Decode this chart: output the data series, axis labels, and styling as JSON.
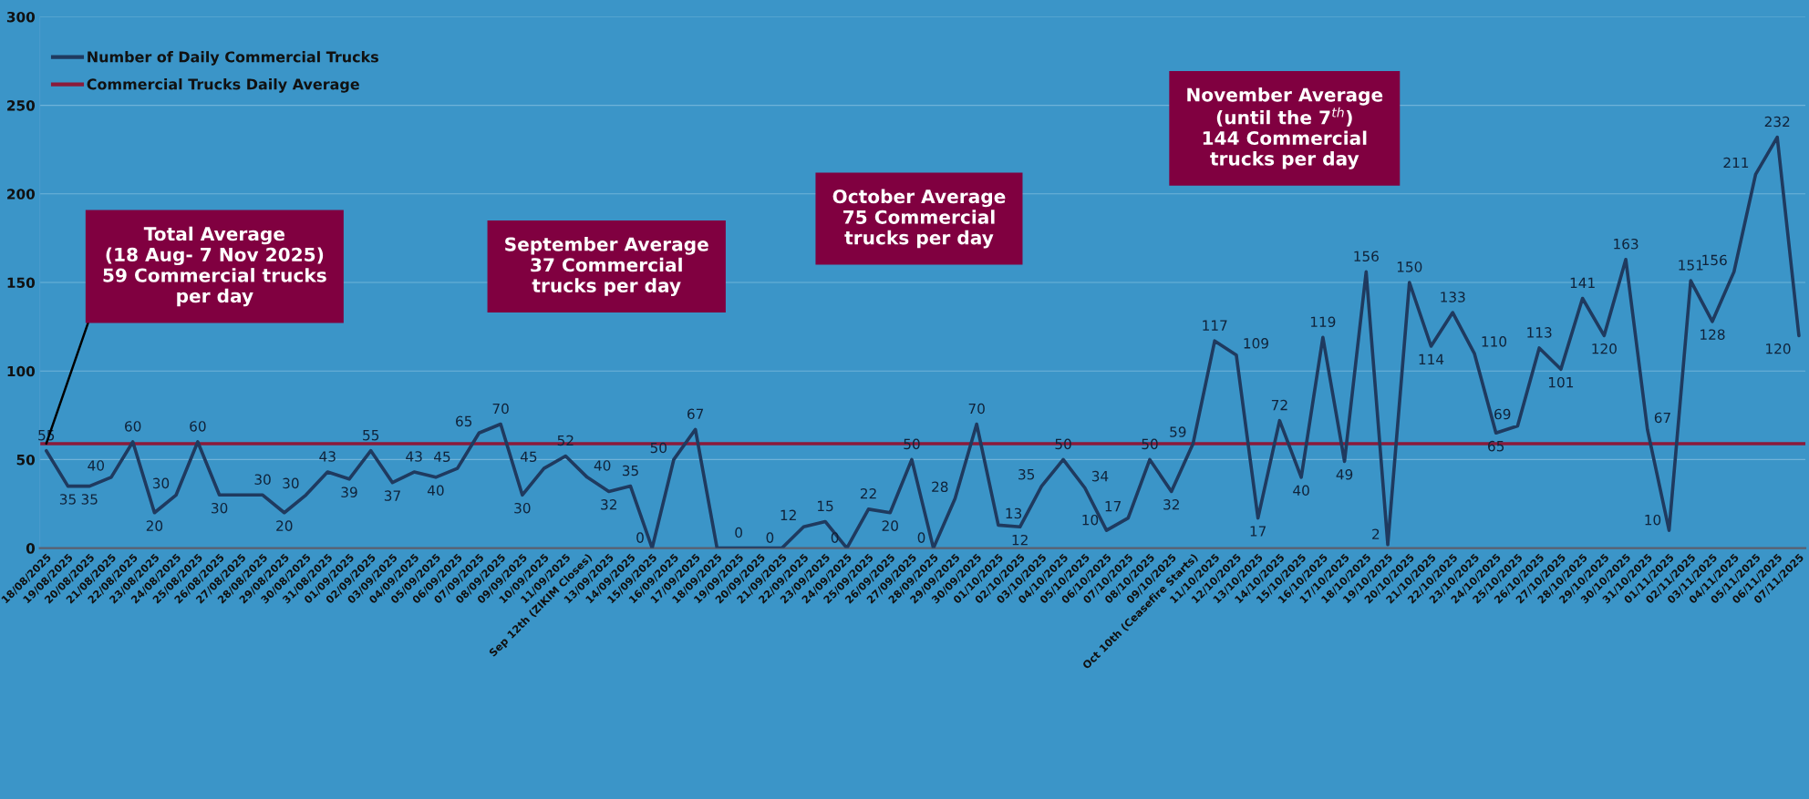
{
  "chart_data": {
    "type": "line",
    "categories": [
      "18/08/2025",
      "19/08/2025",
      "20/08/2025",
      "21/08/2025",
      "22/08/2025",
      "23/08/2025",
      "24/08/2025",
      "25/08/2025",
      "26/08/2025",
      "27/08/2025",
      "28/08/2025",
      "29/08/2025",
      "30/08/2025",
      "31/08/2025",
      "01/09/2025",
      "02/09/2025",
      "03/09/2025",
      "04/09/2025",
      "05/09/2025",
      "06/09/2025",
      "07/09/2025",
      "08/09/2025",
      "09/09/2025",
      "10/09/2025",
      "11/09/2025",
      "Sep 12th (ZIKIM Closes)",
      "13/09/2025",
      "14/09/2025",
      "15/09/2025",
      "16/09/2025",
      "17/09/2025",
      "18/09/2025",
      "19/09/2025",
      "20/09/2025",
      "21/09/2025",
      "22/09/2025",
      "23/09/2025",
      "24/09/2025",
      "25/09/2025",
      "26/09/2025",
      "27/09/2025",
      "28/09/2025",
      "29/09/2025",
      "30/09/2025",
      "01/10/2025",
      "02/10/2025",
      "03/10/2025",
      "04/10/2025",
      "05/10/2025",
      "06/10/2025",
      "07/10/2025",
      "08/10/2025",
      "09/10/2025",
      "Oct 10th (Ceasefire Starts)",
      "11/10/2025",
      "12/10/2025",
      "13/10/2025",
      "14/10/2025",
      "15/10/2025",
      "16/10/2025",
      "17/10/2025",
      "18/10/2025",
      "19/10/2025",
      "20/10/2025",
      "21/10/2025",
      "22/10/2025",
      "23/10/2025",
      "24/10/2025",
      "25/10/2025",
      "26/10/2025",
      "27/10/2025",
      "28/10/2025",
      "29/10/2025",
      "30/10/2025",
      "31/10/2025",
      "01/11/2025",
      "02/11/2025",
      "03/11/2025",
      "04/11/2025",
      "05/11/2025",
      "06/11/2025",
      "07/11/2025"
    ],
    "series": [
      {
        "name": "Number of Daily Commercial Trucks",
        "color": "#1f3a5f",
        "values": [
          55,
          35,
          35,
          40,
          60,
          20,
          30,
          60,
          30,
          30,
          30,
          20,
          30,
          43,
          39,
          55,
          37,
          43,
          40,
          45,
          65,
          70,
          30,
          45,
          52,
          40,
          32,
          35,
          0,
          50,
          67,
          0,
          0,
          0,
          0,
          12,
          15,
          0,
          22,
          20,
          50,
          0,
          28,
          70,
          13,
          12,
          35,
          50,
          34,
          10,
          17,
          50,
          32,
          59,
          117,
          109,
          17,
          72,
          40,
          119,
          49,
          156,
          2,
          150,
          114,
          133,
          110,
          65,
          69,
          113,
          101,
          141,
          120,
          163,
          67,
          10,
          151,
          128,
          156,
          211,
          232,
          120
        ],
        "value_labels": [
          "55",
          "35",
          "35",
          "40",
          "60",
          "20",
          "30",
          "60",
          "30",
          null,
          "30",
          "20",
          "30",
          "43",
          "39",
          "55",
          "37",
          "43",
          "40",
          "45",
          "65",
          "70",
          "30",
          "45",
          "52",
          "40",
          "32",
          "35",
          "0",
          "50",
          "67",
          null,
          "0",
          null,
          "0",
          "12",
          "15",
          "0",
          "22",
          "20",
          "50",
          "0",
          "28",
          "70",
          "13",
          "12",
          "35",
          "50",
          "34",
          "10",
          "17",
          "50",
          "32",
          "59",
          "117",
          "109",
          "17",
          "72",
          "40",
          "119",
          "49",
          "156",
          "2",
          "150",
          "114",
          "133",
          "110",
          "65",
          "69",
          "113",
          "101",
          "141",
          "120",
          "163",
          "67",
          "10",
          "151",
          "128",
          "156",
          "211",
          "232",
          "120"
        ]
      }
    ],
    "ref_lines": [
      {
        "axis": "y",
        "value": 59,
        "label": "Commercial Trucks Daily Average",
        "color": "#8b1a3a"
      }
    ],
    "annotations": [
      {
        "text": "Total Average\n(18 Aug- 7 Nov 2025)\n59 Commercial trucks\nper day",
        "x": "18/08/2025",
        "y": 59
      },
      "September Average\n37 Commercial\ntrucks per day",
      "October Average\n75 Commercial\ntrucks per day",
      "November Average\n(until the 7$^{th}$)\n144 Commercial\ntrucks per day"
    ],
    "ylim": [
      0,
      300
    ],
    "yticks": [
      0,
      50,
      100,
      150,
      200,
      250,
      300
    ],
    "grid": "y",
    "legend": "top left",
    "line_style": "solid",
    "marker": "none"
  }
}
